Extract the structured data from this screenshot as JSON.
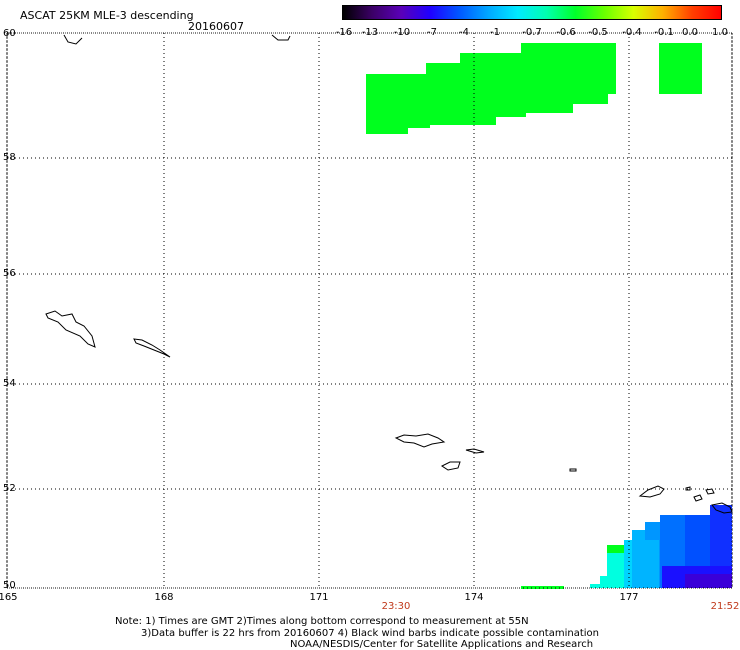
{
  "header": {
    "title": "ASCAT 25KM MLE-3 descending",
    "date": "20160607"
  },
  "colorbar": {
    "labels": [
      "-16",
      "-13",
      "-10",
      "-7",
      "-4",
      "-1",
      "-0.7",
      "-0.6",
      "-0.5",
      "-0.4",
      "-0.1",
      "0.0",
      "1.0"
    ],
    "colors": [
      "#000000",
      "#3b0066",
      "#5a00b8",
      "#1f00ff",
      "#0058ff",
      "#00a8ff",
      "#00eaff",
      "#00ffb0",
      "#00ff2a",
      "#6aff00",
      "#d8ff00",
      "#ffb000",
      "#ff4000",
      "#ff0000"
    ]
  },
  "axes": {
    "lat_labels": [
      "60",
      "58",
      "56",
      "54",
      "52",
      "50"
    ],
    "lon_labels": [
      "165",
      "168",
      "171",
      "174",
      "177"
    ],
    "time_labels": [
      "23:30",
      "21:52"
    ]
  },
  "notes": {
    "line1": "Note: 1) Times are GMT 2)Times along bottom correspond to measurement at 55N",
    "line2": "3)Data buffer is 22 hrs from 20160607 4) Black wind barbs indicate possible contamination",
    "line3": "NOAA/NESDIS/Center for Satellite Applications and Research"
  }
}
